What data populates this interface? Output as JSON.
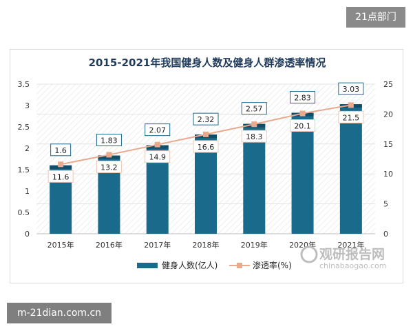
{
  "tags": {
    "top": "21点部门",
    "bottom": "m-21dian.com.cn"
  },
  "watermark": {
    "name": "观研报告网",
    "url": "chinabaogao.com"
  },
  "colors": {
    "bar": "#1a6a8c",
    "bar_cap": "#124e68",
    "line": "#e8a98c",
    "label_border": "#1a6a8c",
    "grid": "#e3e3e3"
  },
  "chart_data": {
    "type": "bar",
    "title": "2015-2021年我国健身人数及健身人群渗透率情况",
    "categories": [
      "2015年",
      "2016年",
      "2017年",
      "2018年",
      "2019年",
      "2020年",
      "2021年"
    ],
    "series": [
      {
        "name": "健身人数(亿人)",
        "type": "bar",
        "axis": "left",
        "values": [
          1.6,
          1.83,
          2.07,
          2.32,
          2.57,
          2.83,
          3.03
        ],
        "labels": [
          "1.6",
          "1.83",
          "2.07",
          "2.32",
          "2.57",
          "2.83",
          "3.03"
        ]
      },
      {
        "name": "渗透率(%)",
        "type": "line",
        "axis": "right",
        "values": [
          11.6,
          13.2,
          14.9,
          16.6,
          18.3,
          20.1,
          21.5
        ],
        "labels": [
          "11.6",
          "13.2",
          "14.9",
          "16.6",
          "18.3",
          "20.1",
          "21.5"
        ]
      }
    ],
    "y_left": {
      "min": 0,
      "max": 3.5,
      "ticks": [
        "0",
        "0.5",
        "1",
        "1.5",
        "2",
        "2.5",
        "3",
        "3.5"
      ]
    },
    "y_right": {
      "min": 0,
      "max": 25,
      "ticks": [
        "0",
        "5",
        "10",
        "15",
        "20",
        "25"
      ]
    },
    "legend": "bottom",
    "grid": true
  }
}
